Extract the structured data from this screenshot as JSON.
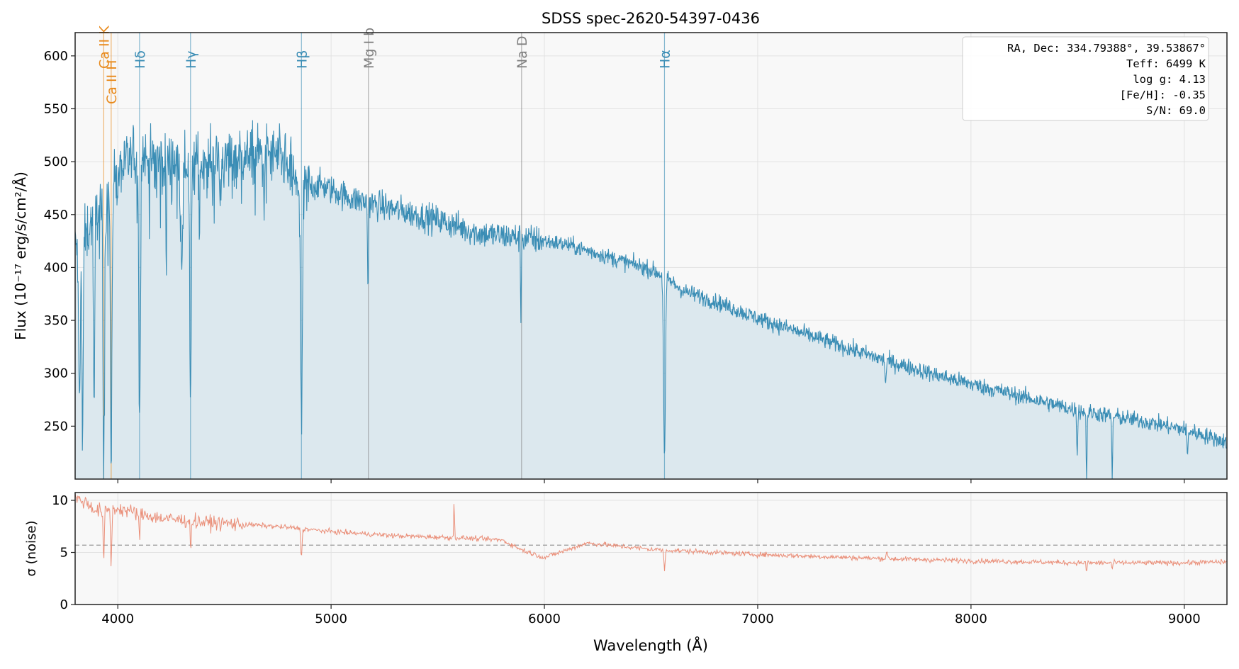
{
  "chart_data": [
    {
      "type": "line",
      "title": "SDSS spec-2620-54397-0436",
      "xlabel": "Wavelength (Å)",
      "ylabel": "Flux (10⁻¹⁷ erg/s/cm²/Å)",
      "xlim": [
        3800,
        9200
      ],
      "ylim": [
        200,
        622
      ],
      "xticks": [
        "4000",
        "5000",
        "6000",
        "7000",
        "8000",
        "9000"
      ],
      "xtick_values": [
        4000,
        5000,
        6000,
        7000,
        8000,
        9000
      ],
      "yticks": [
        "250",
        "300",
        "350",
        "400",
        "450",
        "500",
        "550",
        "600"
      ],
      "ytick_values": [
        250,
        300,
        350,
        400,
        450,
        500,
        550,
        600
      ],
      "grid": true,
      "series_color": "#3a8db5",
      "fill_color": "#dce8ee",
      "continuum": {
        "x": [
          3800,
          3850,
          3900,
          3950,
          4000,
          4100,
          4200,
          4400,
          4600,
          4700,
          4780,
          4850,
          4950,
          5100,
          5300,
          5500,
          5700,
          5900,
          6100,
          6300,
          6500,
          6560,
          6650,
          6800,
          7000,
          7300,
          7600,
          7900,
          8200,
          8500,
          8800,
          9000,
          9200
        ],
        "y": [
          420,
          430,
          455,
          470,
          495,
          505,
          500,
          500,
          505,
          508,
          500,
          475,
          478,
          465,
          455,
          445,
          432,
          428,
          422,
          410,
          398,
          392,
          378,
          368,
          352,
          332,
          312,
          295,
          280,
          265,
          255,
          247,
          235
        ]
      },
      "absorption_lines": [
        {
          "x": 3820,
          "min": 280,
          "w": 6
        },
        {
          "x": 3835,
          "min": 222,
          "w": 4
        },
        {
          "x": 3889,
          "min": 245,
          "w": 4
        },
        {
          "x": 3934,
          "min": 200,
          "w": 5
        },
        {
          "x": 3969,
          "min": 200,
          "w": 5
        },
        {
          "x": 4102,
          "min": 248,
          "w": 5
        },
        {
          "x": 4227,
          "min": 375,
          "w": 2
        },
        {
          "x": 4300,
          "min": 420,
          "w": 8
        },
        {
          "x": 4341,
          "min": 262,
          "w": 5
        },
        {
          "x": 4383,
          "min": 405,
          "w": 2
        },
        {
          "x": 4861,
          "min": 248,
          "w": 6
        },
        {
          "x": 5173,
          "min": 375,
          "w": 3
        },
        {
          "x": 5890,
          "min": 352,
          "w": 2.5
        },
        {
          "x": 6563,
          "min": 217,
          "w": 6
        },
        {
          "x": 7600,
          "min": 292,
          "w": 4
        },
        {
          "x": 8498,
          "min": 225,
          "w": 3
        },
        {
          "x": 8542,
          "min": 200,
          "w": 3
        },
        {
          "x": 8662,
          "min": 200,
          "w": 3
        },
        {
          "x": 9015,
          "min": 218,
          "w": 3
        }
      ],
      "line_markers": [
        {
          "label": "Ca II K",
          "x": 3934,
          "color": "#e8891a",
          "group": "Ca"
        },
        {
          "label": "Ca II H",
          "x": 3969,
          "color": "#e8891a",
          "group": "Ca"
        },
        {
          "label": "Hδ",
          "x": 4102,
          "color": "#3a8db5",
          "group": "H"
        },
        {
          "label": "Hγ",
          "x": 4341,
          "color": "#3a8db5",
          "group": "H"
        },
        {
          "label": "Hβ",
          "x": 4861,
          "color": "#3a8db5",
          "group": "H"
        },
        {
          "label": "Mg I b",
          "x": 5175,
          "color": "#808080",
          "group": "metal"
        },
        {
          "label": "Na D",
          "x": 5893,
          "color": "#808080",
          "group": "metal"
        },
        {
          "label": "Hα",
          "x": 6563,
          "color": "#3a8db5",
          "group": "H"
        }
      ],
      "info_box": [
        "RA, Dec: 334.79388°, 39.53867°",
        "Teff: 6499 K",
        "log g: 4.13",
        "[Fe/H]: -0.35",
        "S/N: 69.0"
      ]
    },
    {
      "type": "line",
      "ylabel": "σ (noise)",
      "xlim": [
        3800,
        9200
      ],
      "ylim": [
        0,
        10.75
      ],
      "yticks": [
        "0",
        "5",
        "10"
      ],
      "ytick_values": [
        0,
        5,
        10
      ],
      "series_color": "#e8836a",
      "median_line": 5.7,
      "median_color": "#999999",
      "sigma": {
        "x": [
          3800,
          3850,
          3900,
          4000,
          4200,
          4400,
          4600,
          4800,
          5000,
          5300,
          5600,
          5800,
          5900,
          6000,
          6100,
          6200,
          6300,
          6500,
          6700,
          7000,
          7300,
          7600,
          8000,
          8500,
          9000,
          9200
        ],
        "y": [
          10.2,
          9.8,
          9.0,
          9.2,
          8.3,
          7.9,
          7.7,
          7.4,
          7.0,
          6.6,
          6.4,
          6.2,
          5.2,
          4.5,
          5.2,
          5.9,
          5.7,
          5.3,
          5.1,
          4.8,
          4.6,
          4.4,
          4.2,
          4.0,
          4.0,
          4.1
        ]
      },
      "features": [
        {
          "x": 3934,
          "min": 3.9,
          "w": 4
        },
        {
          "x": 3969,
          "min": 3.9,
          "w": 4
        },
        {
          "x": 4102,
          "min": 5.6,
          "w": 3
        },
        {
          "x": 4341,
          "min": 5.1,
          "w": 3
        },
        {
          "x": 4861,
          "min": 4.4,
          "w": 4
        },
        {
          "x": 6563,
          "min": 3.2,
          "w": 4
        },
        {
          "x": 8542,
          "min": 3.1,
          "w": 3
        },
        {
          "x": 8662,
          "min": 3.4,
          "w": 3
        },
        {
          "x": 5577,
          "peak": 10.7,
          "w": 2
        },
        {
          "x": 7605,
          "peak": 5.2,
          "w": 4
        }
      ]
    }
  ]
}
